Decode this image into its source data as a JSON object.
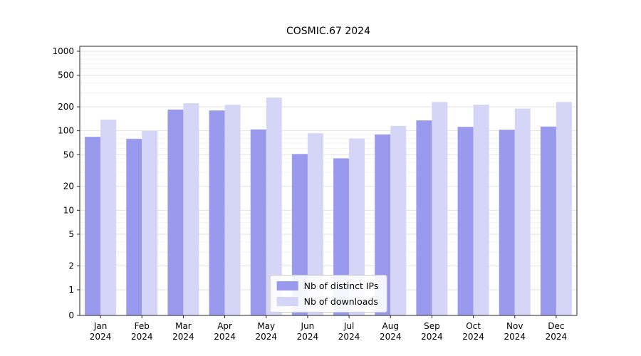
{
  "chart": {
    "title": "COSMIC.67 2024",
    "legend_ips": "Nb of distinct IPs",
    "legend_downloads": "Nb of downloads"
  },
  "chart_data": {
    "type": "bar",
    "title": "COSMIC.67 2024",
    "yscale": "symlog",
    "grid": true,
    "legend_position": "lower center",
    "categories": [
      "Jan 2024",
      "Feb 2024",
      "Mar 2024",
      "Apr 2024",
      "May 2024",
      "Jun 2024",
      "Jul 2024",
      "Aug 2024",
      "Sep 2024",
      "Oct 2024",
      "Nov 2024",
      "Dec 2024"
    ],
    "series": [
      {
        "name": "Nb of distinct IPs",
        "color": "#9999ee",
        "values": [
          84,
          79,
          185,
          180,
          104,
          51,
          45,
          90,
          135,
          112,
          103,
          113
        ]
      },
      {
        "name": "Nb of downloads",
        "color": "#d5d5f8",
        "values": [
          138,
          100,
          222,
          212,
          262,
          93,
          80,
          115,
          230,
          213,
          190,
          230
        ]
      }
    ],
    "yticks": [
      0,
      1,
      2,
      5,
      10,
      20,
      50,
      100,
      200,
      500,
      1000
    ],
    "ylim": [
      0,
      1000
    ],
    "xlabel": "",
    "ylabel": ""
  }
}
